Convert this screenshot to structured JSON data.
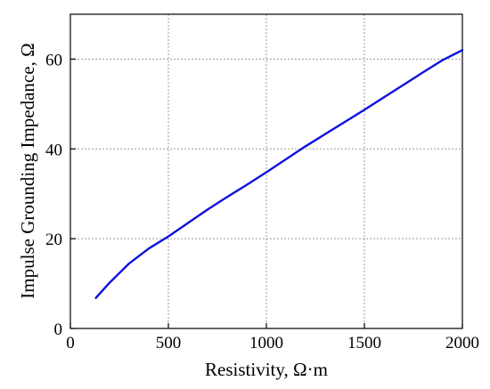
{
  "chart_data": {
    "type": "line",
    "title": "",
    "xlabel": "Resistivity, Ω·m",
    "ylabel": "Impulse Grounding Impedance, Ω",
    "xlim": [
      0,
      2000
    ],
    "ylim": [
      0,
      70
    ],
    "x_ticks": [
      0,
      500,
      1000,
      1500,
      2000
    ],
    "y_ticks": [
      0,
      20,
      40,
      60
    ],
    "x_tick_labels": [
      "0",
      "500",
      "1000",
      "1500",
      "2000"
    ],
    "y_tick_labels": [
      "0",
      "20",
      "40",
      "60"
    ],
    "grid": "dotted, at major ticks",
    "legend": "none",
    "series": [
      {
        "color": "#1010e0",
        "x": [
          130,
          200,
          300,
          400,
          500,
          600,
          700,
          800,
          900,
          1000,
          1100,
          1200,
          1300,
          1400,
          1500,
          1600,
          1700,
          1800,
          1900,
          2000
        ],
        "y": [
          6.8,
          10.2,
          14.5,
          17.8,
          20.5,
          23.5,
          26.5,
          29.3,
          32,
          34.8,
          37.7,
          40.6,
          43.3,
          46,
          48.7,
          51.5,
          54.3,
          57.1,
          59.8,
          62
        ]
      }
    ]
  }
}
